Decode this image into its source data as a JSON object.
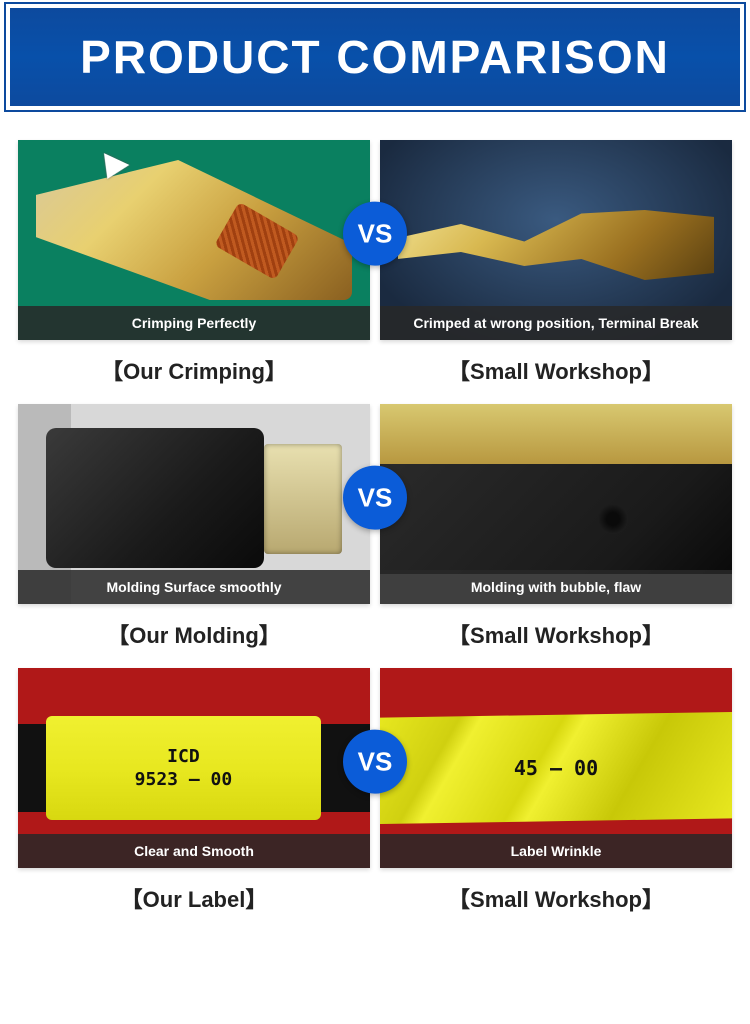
{
  "header": {
    "title": "PRODUCT COMPARISON",
    "bg_color": "#0d4a9e",
    "text_color": "#ffffff"
  },
  "vs_label": "VS",
  "vs_bg": "#0b5cd8",
  "rows": [
    {
      "left": {
        "caption": "Crimping Perfectly",
        "label": "【Our Crimping】"
      },
      "right": {
        "caption": "Crimped at wrong position, Terminal Break",
        "label": "【Small Workshop】"
      }
    },
    {
      "left": {
        "caption": "Molding Surface smoothly",
        "label": "【Our Molding】"
      },
      "right": {
        "caption": "Molding with bubble, flaw",
        "label": "【Small Workshop】"
      }
    },
    {
      "left": {
        "caption": "Clear and Smooth",
        "label": "【Our Label】",
        "label_text_line1": "ICD",
        "label_text_line2": "9523 — 00"
      },
      "right": {
        "caption": "Label Wrinkle",
        "label": "【Small Workshop】",
        "label_text": "45 — 00"
      }
    }
  ],
  "colors": {
    "caption_bg": "rgba(40,40,40,0.85)",
    "caption_text": "#ffffff",
    "row_label_text": "#222222",
    "red_bg": "#b01818",
    "yellow_label": "#e8e820"
  }
}
